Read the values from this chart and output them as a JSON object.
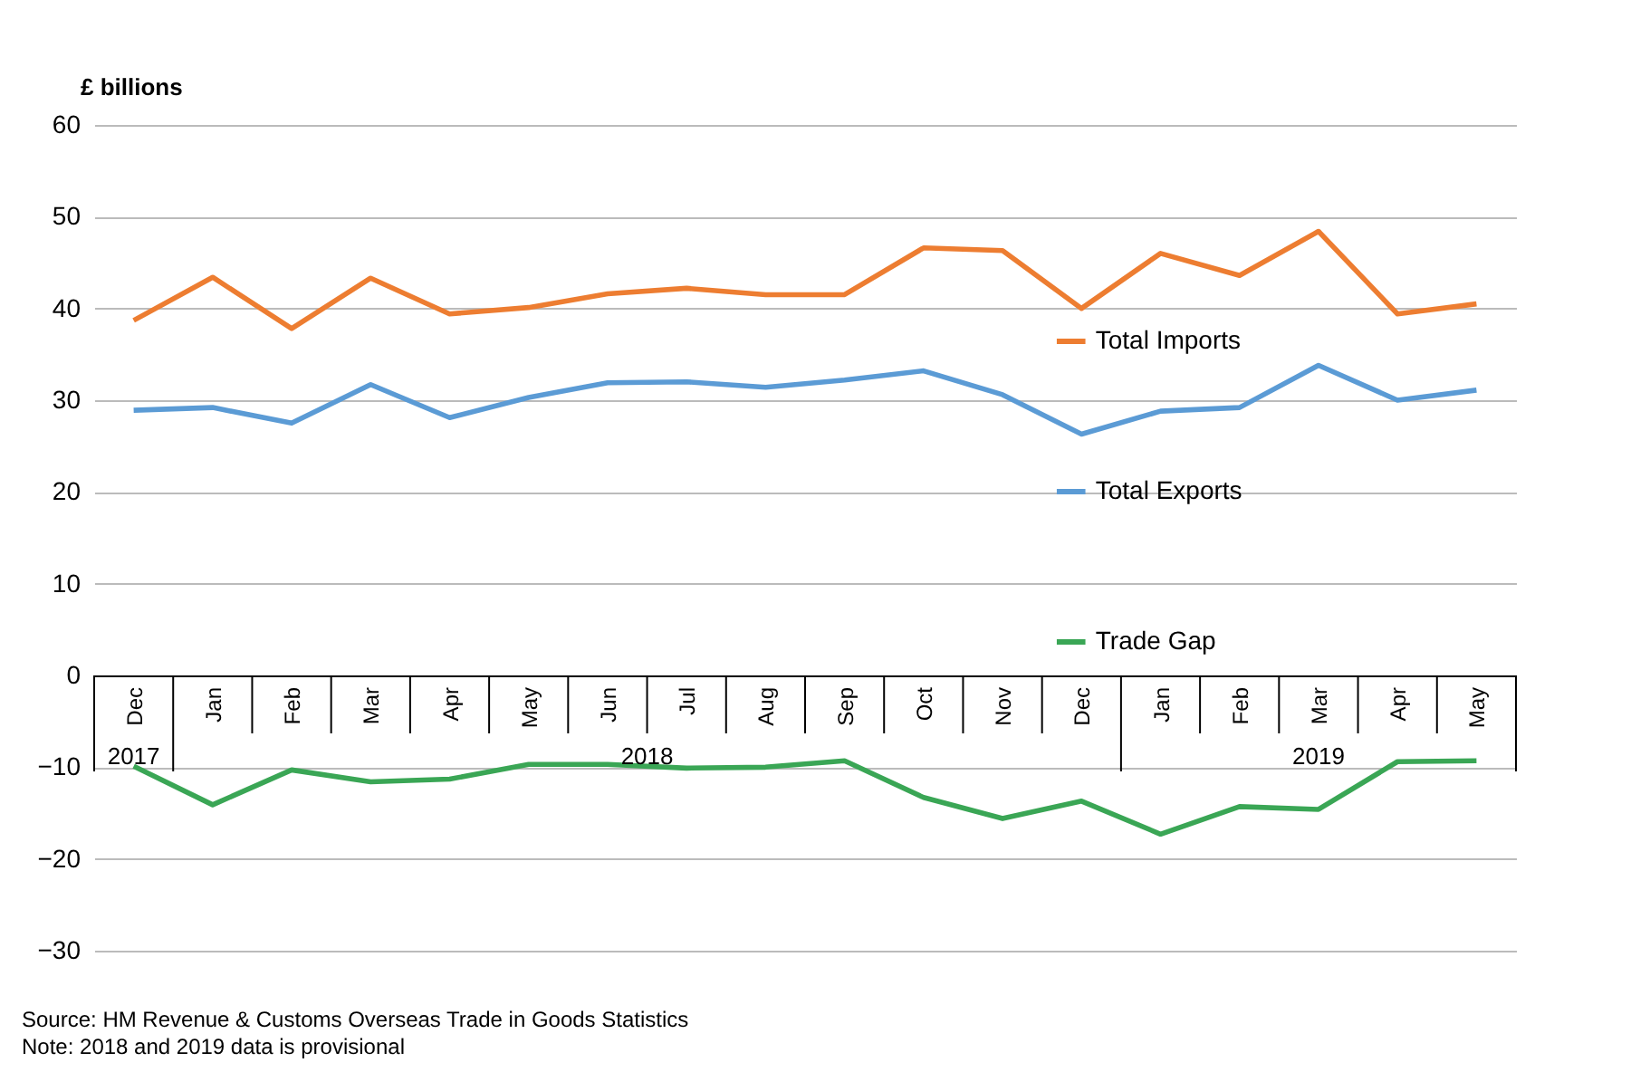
{
  "chart_data": {
    "type": "line",
    "ylabel": "£ billions",
    "categories": [
      "Dec",
      "Jan",
      "Feb",
      "Mar",
      "Apr",
      "May",
      "Jun",
      "Jul",
      "Aug",
      "Sep",
      "Oct",
      "Nov",
      "Dec",
      "Jan",
      "Feb",
      "Mar",
      "Apr",
      "May"
    ],
    "series": [
      {
        "name": "Total Imports",
        "color": "#ed7d31",
        "values": [
          38.7,
          43.4,
          37.8,
          43.3,
          39.4,
          40.1,
          41.6,
          42.2,
          41.5,
          41.5,
          46.6,
          46.3,
          40.0,
          46.0,
          43.6,
          48.4,
          39.4,
          40.5
        ]
      },
      {
        "name": "Total Exports",
        "color": "#5b9bd5",
        "values": [
          28.9,
          29.2,
          27.5,
          31.7,
          28.1,
          30.3,
          31.9,
          32.0,
          31.4,
          32.2,
          33.2,
          30.6,
          26.3,
          28.8,
          29.2,
          33.8,
          30.0,
          31.1
        ]
      },
      {
        "name": "Trade Gap",
        "color": "#3aa655",
        "values": [
          -9.9,
          -14.1,
          -10.3,
          -11.6,
          -11.3,
          -9.7,
          -9.7,
          -10.1,
          -10.0,
          -9.3,
          -13.3,
          -15.6,
          -13.7,
          -17.3,
          -14.3,
          -14.6,
          -9.4,
          -9.3
        ]
      }
    ],
    "ylim": [
      -30,
      60
    ],
    "yticks": [
      -30,
      -20,
      -10,
      0,
      10,
      20,
      30,
      40,
      50,
      60
    ],
    "grid": "y",
    "legend": "right",
    "line_style": "solid",
    "marker": "none",
    "annotations": [
      "2017",
      "2018",
      "2019",
      "Source:  HM Revenue & Customs Overseas Trade in Goods Statistics",
      "Note: 2018 and 2019 data is provisional"
    ]
  }
}
